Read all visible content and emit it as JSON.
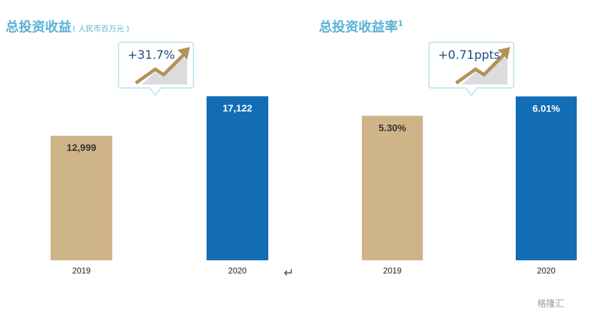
{
  "colors": {
    "title": "#5ab1d6",
    "y2019": "#cfb488",
    "y2020": "#126db5",
    "label_dark": "#333333",
    "label_light": "#ffffff",
    "callout_border": "#b7dff0",
    "arrow": "#b3925a"
  },
  "left": {
    "title": "总投资收益",
    "subtitle": "( 人民币百万元 )",
    "callout": "+31.7%",
    "chart_data": {
      "type": "bar",
      "categories": [
        "2019",
        "2020"
      ],
      "values": [
        12999,
        17122
      ],
      "value_labels": [
        "12,999",
        "17,122"
      ],
      "ylim": [
        0,
        18500
      ]
    }
  },
  "right": {
    "title": "总投资收益率",
    "sup": "1",
    "callout": "+0.71ppts",
    "chart_data": {
      "type": "bar",
      "categories": [
        "2019",
        "2020"
      ],
      "values": [
        5.3,
        6.01
      ],
      "value_labels": [
        "5.30%",
        "6.01%"
      ],
      "ylim": [
        0,
        6.5
      ]
    }
  },
  "icons": {
    "return": "return-arrow-icon"
  },
  "watermark": "格隆汇"
}
